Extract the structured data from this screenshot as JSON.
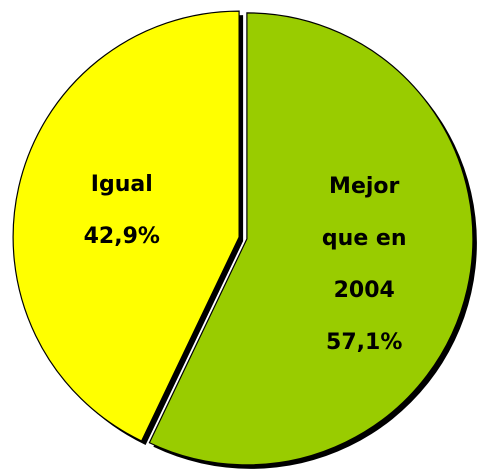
{
  "chart_data": {
    "type": "pie",
    "categories": [
      "Mejor que en 2004",
      "Igual"
    ],
    "values": [
      57.1,
      42.9
    ],
    "value_labels": [
      "57,1%",
      "42,9%"
    ],
    "colors": [
      "#99cc00",
      "#ffff00"
    ]
  }
}
